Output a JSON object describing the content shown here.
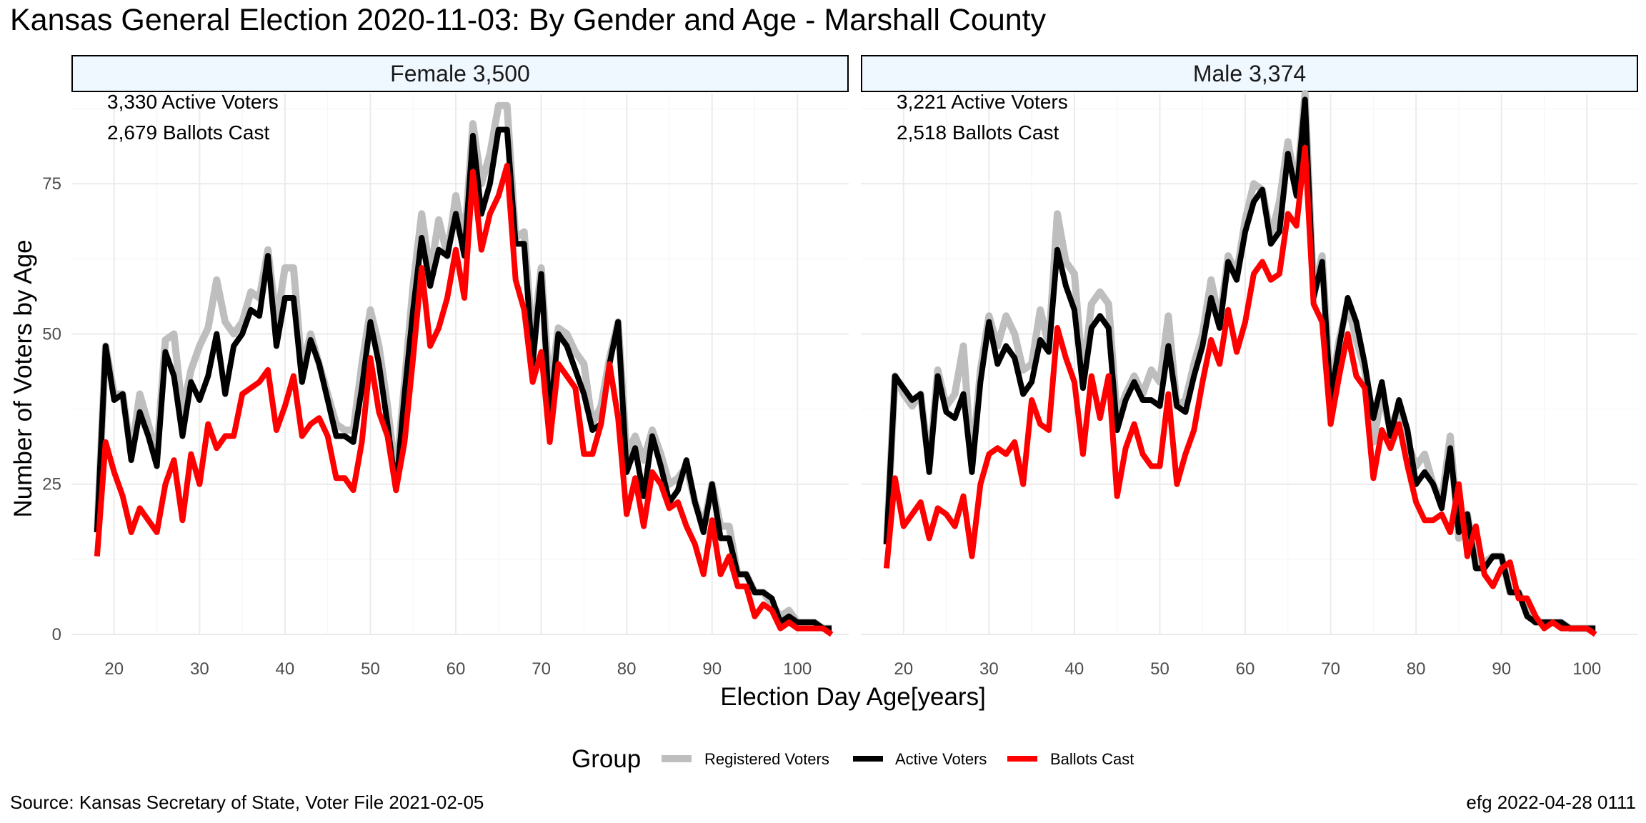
{
  "title": "Kansas General Election 2020-11-03:  By Gender and Age - Marshall County",
  "footer": {
    "source": "Source:  Kansas Secretary of State, Voter File  2021-02-05",
    "stamp": "efg 2022-04-28 0111"
  },
  "colors": {
    "registered": "#bebebe",
    "active": "#000000",
    "ballots": "#ff0000",
    "strip_fill": "#f0f8ff",
    "grid": "#ebebeb"
  },
  "chart_data": {
    "type": "line",
    "xlabel": "Election Day Age[years]",
    "ylabel": "Number of Voters by Age",
    "xlim": [
      15,
      106
    ],
    "ylim": [
      0,
      90
    ],
    "x_ticks": [
      20,
      30,
      40,
      50,
      60,
      70,
      80,
      90,
      100
    ],
    "y_ticks": [
      0,
      25,
      50,
      75
    ],
    "grid": true,
    "legend": {
      "position": "bottom",
      "title": "Group",
      "items": [
        "Registered Voters",
        "Active Voters",
        "Ballots Cast"
      ]
    },
    "panels": [
      {
        "strip": "Female 3,500",
        "annotations": [
          "3,330 Active Voters",
          "2,679 Ballots Cast"
        ],
        "x": [
          18,
          19,
          20,
          21,
          22,
          23,
          24,
          25,
          26,
          27,
          28,
          29,
          30,
          31,
          32,
          33,
          34,
          35,
          36,
          37,
          38,
          39,
          40,
          41,
          42,
          43,
          44,
          45,
          46,
          47,
          48,
          49,
          50,
          51,
          52,
          53,
          54,
          55,
          56,
          57,
          58,
          59,
          60,
          61,
          62,
          63,
          64,
          65,
          66,
          67,
          68,
          69,
          70,
          71,
          72,
          73,
          74,
          75,
          76,
          77,
          78,
          79,
          80,
          81,
          82,
          83,
          84,
          85,
          86,
          87,
          88,
          89,
          90,
          91,
          92,
          93,
          94,
          95,
          96,
          97,
          98,
          99,
          100,
          101,
          102,
          103,
          104
        ],
        "series": [
          {
            "name": "Registered Voters",
            "values": [
              17,
              48,
              40,
              40,
              30,
              40,
              35,
              30,
              49,
              50,
              37,
              44,
              48,
              51,
              59,
              52,
              50,
              52,
              57,
              56,
              64,
              52,
              61,
              61,
              44,
              50,
              45,
              40,
              35,
              34,
              34,
              45,
              54,
              48,
              38,
              26,
              42,
              58,
              70,
              60,
              69,
              63,
              73,
              65,
              85,
              75,
              80,
              88,
              88,
              66,
              67,
              48,
              61,
              40,
              51,
              50,
              47,
              45,
              35,
              38,
              46,
              52,
              30,
              33,
              29,
              34,
              30,
              25,
              26,
              28,
              22,
              18,
              25,
              18,
              18,
              10,
              10,
              7,
              7,
              5,
              3,
              4,
              2,
              2,
              2,
              1,
              1
            ]
          },
          {
            "name": "Active Voters",
            "values": [
              17,
              48,
              39,
              40,
              29,
              37,
              33,
              28,
              47,
              43,
              33,
              42,
              39,
              43,
              50,
              40,
              48,
              50,
              54,
              53,
              63,
              48,
              56,
              56,
              42,
              49,
              45,
              39,
              33,
              33,
              32,
              41,
              52,
              45,
              35,
              24,
              40,
              54,
              66,
              58,
              64,
              63,
              70,
              63,
              83,
              70,
              75,
              84,
              84,
              65,
              65,
              45,
              60,
              36,
              50,
              48,
              44,
              40,
              34,
              35,
              45,
              52,
              27,
              31,
              23,
              33,
              28,
              22,
              24,
              29,
              22,
              17,
              25,
              16,
              16,
              10,
              10,
              7,
              7,
              6,
              2,
              3,
              2,
              2,
              2,
              1,
              1
            ]
          },
          {
            "name": "Ballots Cast",
            "values": [
              13,
              32,
              27,
              23,
              17,
              21,
              19,
              17,
              25,
              29,
              19,
              30,
              25,
              35,
              31,
              33,
              33,
              40,
              41,
              42,
              44,
              34,
              38,
              43,
              33,
              35,
              36,
              33,
              26,
              26,
              24,
              32,
              46,
              37,
              33,
              24,
              32,
              46,
              61,
              48,
              51,
              56,
              64,
              56,
              77,
              64,
              70,
              73,
              78,
              59,
              54,
              42,
              47,
              32,
              45,
              43,
              41,
              30,
              30,
              35,
              45,
              36,
              20,
              26,
              18,
              27,
              25,
              21,
              22,
              18,
              15,
              10,
              19,
              10,
              13,
              8,
              8,
              3,
              5,
              4,
              1,
              2,
              1,
              1,
              1,
              1,
              0
            ]
          }
        ]
      },
      {
        "strip": "Male 3,374",
        "annotations": [
          "3,221 Active Voters",
          "2,518 Ballots Cast"
        ],
        "x": [
          18,
          19,
          20,
          21,
          22,
          23,
          24,
          25,
          26,
          27,
          28,
          29,
          30,
          31,
          32,
          33,
          34,
          35,
          36,
          37,
          38,
          39,
          40,
          41,
          42,
          43,
          44,
          45,
          46,
          47,
          48,
          49,
          50,
          51,
          52,
          53,
          54,
          55,
          56,
          57,
          58,
          59,
          60,
          61,
          62,
          63,
          64,
          65,
          66,
          67,
          68,
          69,
          70,
          71,
          72,
          73,
          74,
          75,
          76,
          77,
          78,
          79,
          80,
          81,
          82,
          83,
          84,
          85,
          86,
          87,
          88,
          89,
          90,
          91,
          92,
          93,
          94,
          95,
          96,
          97,
          98,
          99,
          100,
          101
        ],
        "series": [
          {
            "name": "Registered Voters",
            "values": [
              15,
              43,
              40,
              38,
              40,
              28,
              44,
              38,
              40,
              48,
              28,
              44,
              53,
              48,
              53,
              50,
              44,
              45,
              54,
              48,
              70,
              62,
              60,
              43,
              55,
              57,
              55,
              36,
              40,
              43,
              40,
              44,
              42,
              53,
              38,
              39,
              45,
              50,
              59,
              52,
              63,
              60,
              69,
              75,
              74,
              66,
              72,
              82,
              74,
              90,
              57,
              63,
              40,
              49,
              55,
              49,
              44,
              32,
              40,
              34,
              38,
              32,
              28,
              30,
              25,
              22,
              33,
              16,
              20,
              12,
              12,
              13,
              13,
              7,
              7,
              4,
              2,
              2,
              2,
              2,
              1,
              1,
              1,
              1
            ]
          },
          {
            "name": "Active Voters",
            "values": [
              15,
              43,
              41,
              39,
              40,
              27,
              43,
              37,
              36,
              40,
              27,
              42,
              52,
              45,
              48,
              46,
              40,
              42,
              49,
              47,
              64,
              58,
              54,
              41,
              51,
              53,
              51,
              34,
              39,
              42,
              39,
              39,
              38,
              48,
              38,
              37,
              43,
              48,
              56,
              51,
              62,
              59,
              67,
              72,
              74,
              65,
              67,
              80,
              73,
              89,
              56,
              62,
              39,
              48,
              56,
              52,
              45,
              36,
              42,
              33,
              39,
              34,
              25,
              27,
              25,
              21,
              31,
              17,
              20,
              11,
              11,
              13,
              13,
              7,
              7,
              3,
              2,
              2,
              2,
              2,
              1,
              1,
              1,
              1
            ]
          },
          {
            "name": "Ballots Cast",
            "values": [
              11,
              26,
              18,
              20,
              22,
              16,
              21,
              20,
              18,
              23,
              13,
              25,
              30,
              31,
              30,
              32,
              25,
              39,
              35,
              34,
              51,
              46,
              42,
              30,
              43,
              36,
              43,
              23,
              31,
              35,
              30,
              28,
              28,
              40,
              25,
              30,
              34,
              42,
              49,
              45,
              54,
              47,
              52,
              60,
              62,
              59,
              60,
              70,
              68,
              81,
              55,
              52,
              35,
              43,
              50,
              43,
              41,
              26,
              34,
              31,
              35,
              28,
              22,
              19,
              19,
              20,
              17,
              25,
              13,
              18,
              10,
              8,
              11,
              12,
              6,
              6,
              3,
              1,
              2,
              1,
              1,
              1,
              1,
              0
            ]
          }
        ]
      }
    ]
  }
}
